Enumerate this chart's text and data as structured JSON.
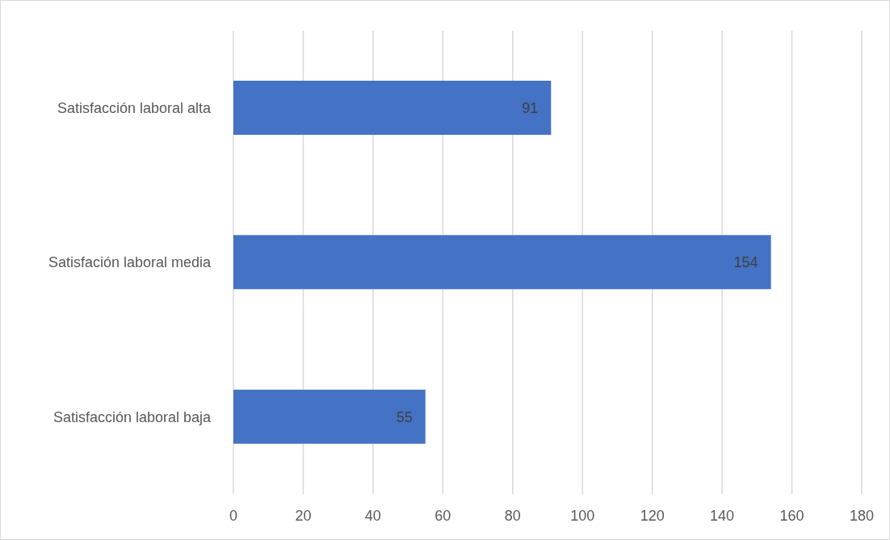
{
  "chart_data": {
    "type": "bar",
    "orientation": "horizontal",
    "categories": [
      "Satisfacción laboral alta",
      "Satisfación laboral media",
      "Satisfacción laboral baja"
    ],
    "values": [
      91,
      154,
      55
    ],
    "color": "#4472c4",
    "xlim": [
      0,
      180
    ],
    "xticks": [
      0,
      20,
      40,
      60,
      80,
      100,
      120,
      140,
      160,
      180
    ],
    "grid": "x",
    "data_labels": true
  }
}
